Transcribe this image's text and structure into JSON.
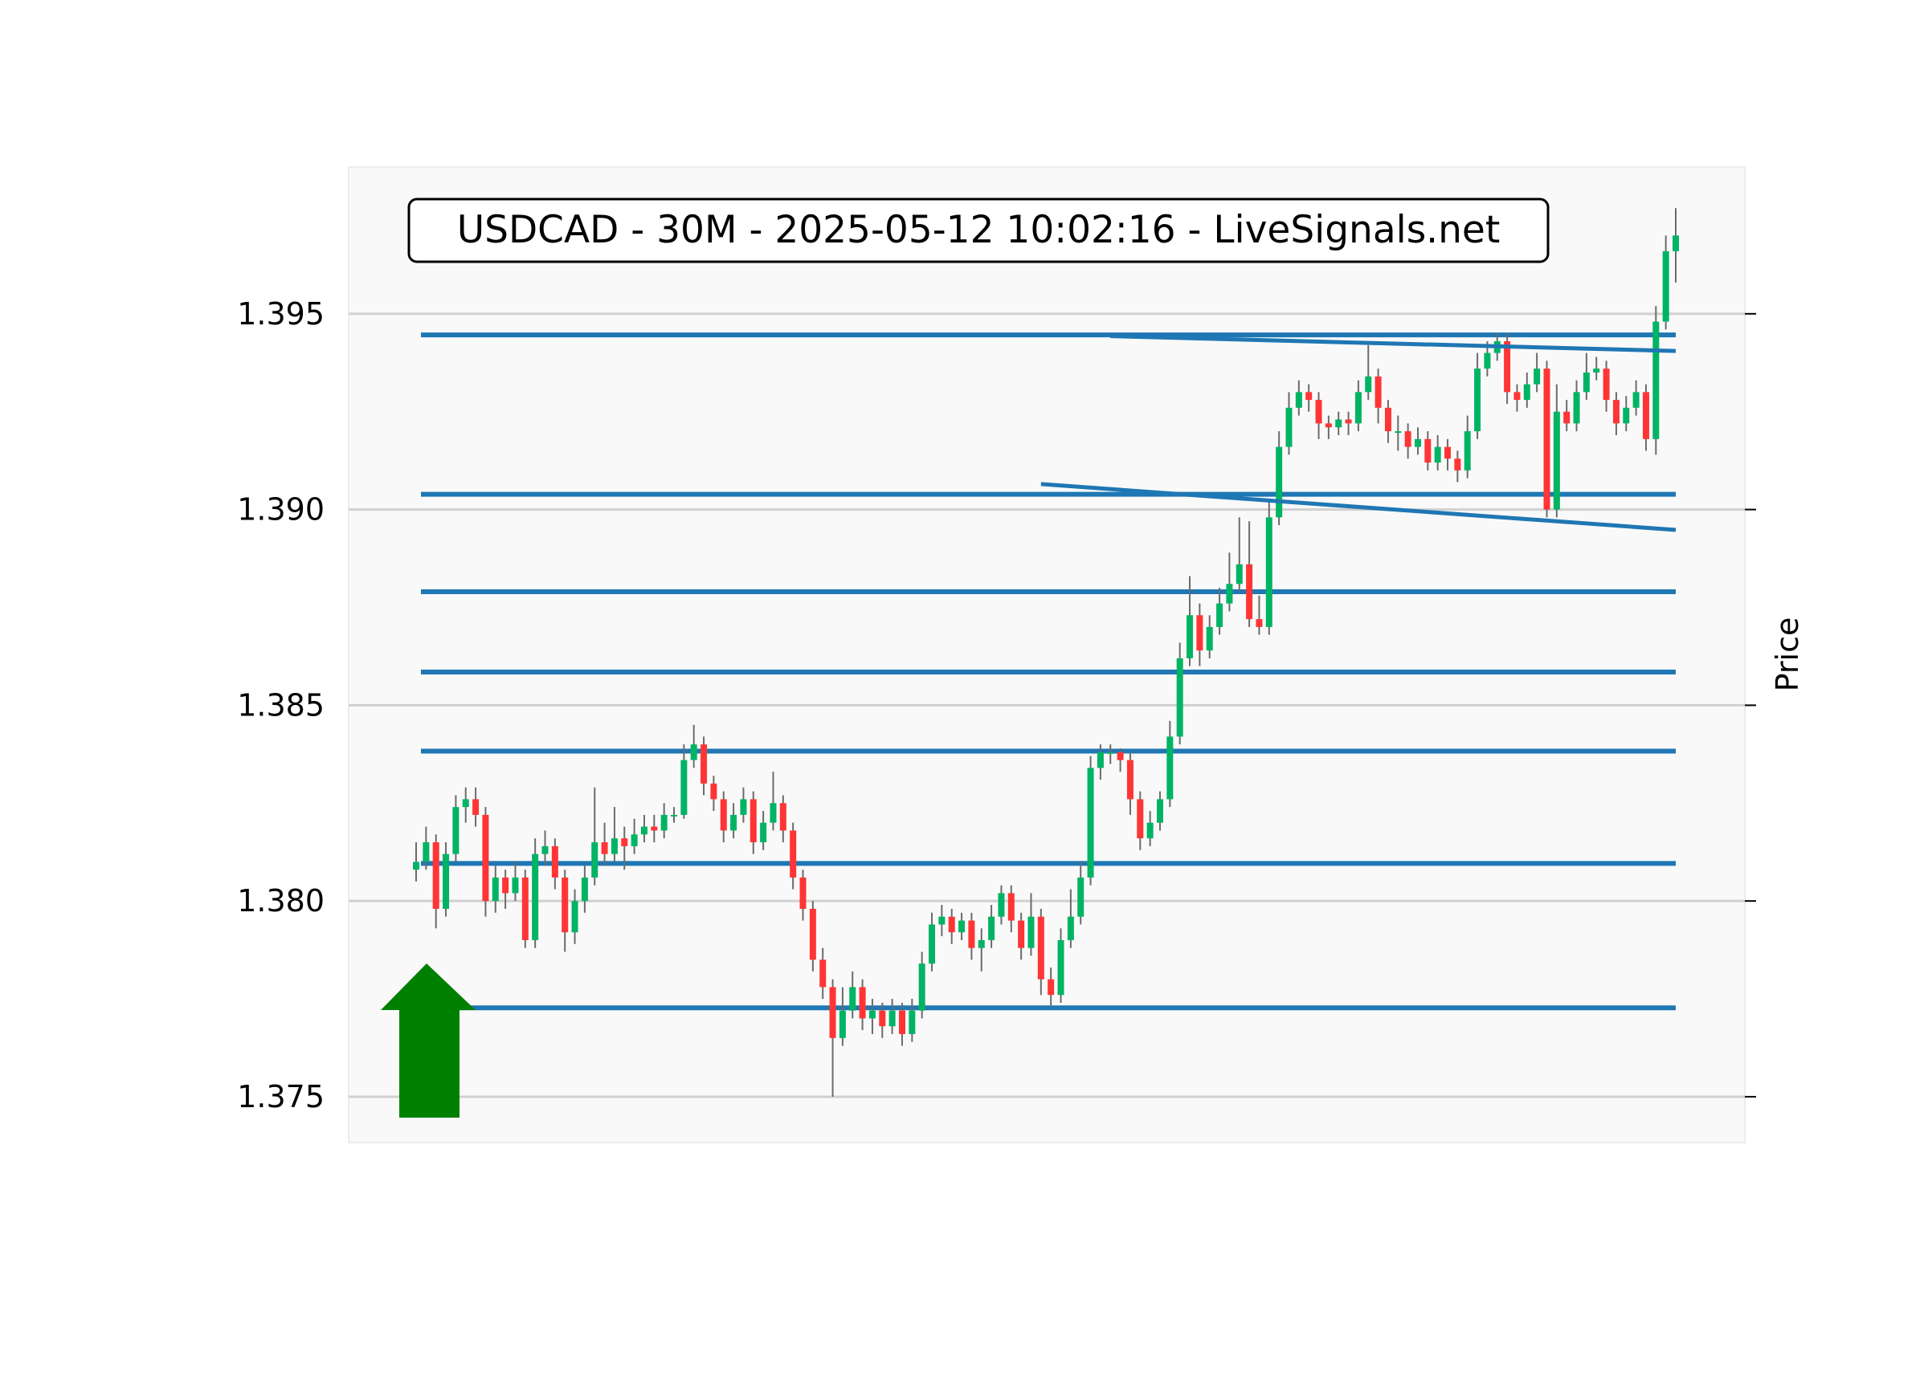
{
  "chart_data": {
    "type": "candlestick",
    "title": "USDCAD - 30M - 2025-05-12 10:02:16 - LiveSignals.net",
    "xlabel": "",
    "ylabel": "Price",
    "ylim": [
      1.37383,
      1.39875
    ],
    "yticks": [
      1.375,
      1.38,
      1.385,
      1.39,
      1.395
    ],
    "ytick_labels": [
      "1.375",
      "1.380",
      "1.385",
      "1.390",
      "1.395"
    ],
    "grid": "horizontal",
    "colors": {
      "up": "#00b464",
      "down": "#ff3535",
      "wick": "#6b6b6b",
      "levels": "#1f77b4",
      "signal": "#008000",
      "background": "#f9f9f9",
      "grid": "#d0d0d0"
    },
    "signal": {
      "direction": "buy",
      "icon": "up-arrow"
    },
    "horizontal_levels": [
      1.39446,
      1.39039,
      1.3879,
      1.38585,
      1.38383,
      1.38096,
      1.37727
    ],
    "trend_lines": [
      {
        "start_index": 70,
        "start_price": 1.39443,
        "end_index": 127,
        "end_price": 1.39405
      },
      {
        "start_index": 63,
        "start_price": 1.39065,
        "end_index": 127,
        "end_price": 1.38948
      }
    ],
    "ohlc": [
      [
        1.3808,
        1.3815,
        1.3805,
        1.381
      ],
      [
        1.381,
        1.3819,
        1.3808,
        1.3815
      ],
      [
        1.3815,
        1.3817,
        1.3793,
        1.3798
      ],
      [
        1.3798,
        1.3815,
        1.3796,
        1.3812
      ],
      [
        1.3812,
        1.3827,
        1.381,
        1.3824
      ],
      [
        1.3824,
        1.3829,
        1.382,
        1.3826
      ],
      [
        1.3826,
        1.3829,
        1.3819,
        1.3822
      ],
      [
        1.3822,
        1.3824,
        1.3796,
        1.38
      ],
      [
        1.38,
        1.3809,
        1.3797,
        1.3806
      ],
      [
        1.3806,
        1.3808,
        1.3798,
        1.3802
      ],
      [
        1.3802,
        1.381,
        1.38,
        1.3806
      ],
      [
        1.3806,
        1.3808,
        1.3788,
        1.379
      ],
      [
        1.379,
        1.3816,
        1.3788,
        1.3812
      ],
      [
        1.3812,
        1.3818,
        1.3809,
        1.3814
      ],
      [
        1.3814,
        1.3816,
        1.3803,
        1.3806
      ],
      [
        1.3806,
        1.3808,
        1.3787,
        1.3792
      ],
      [
        1.3792,
        1.3803,
        1.3789,
        1.38
      ],
      [
        1.38,
        1.3809,
        1.3797,
        1.3806
      ],
      [
        1.3806,
        1.3829,
        1.3804,
        1.3815
      ],
      [
        1.3815,
        1.382,
        1.3809,
        1.3812
      ],
      [
        1.3812,
        1.3824,
        1.381,
        1.3816
      ],
      [
        1.3816,
        1.3819,
        1.3808,
        1.3814
      ],
      [
        1.3814,
        1.3821,
        1.3812,
        1.3817
      ],
      [
        1.3817,
        1.3822,
        1.3815,
        1.3819
      ],
      [
        1.3819,
        1.3822,
        1.3815,
        1.3818
      ],
      [
        1.3818,
        1.3825,
        1.3816,
        1.3822
      ],
      [
        1.3822,
        1.3824,
        1.382,
        1.3822
      ],
      [
        1.3822,
        1.384,
        1.3821,
        1.3836
      ],
      [
        1.3836,
        1.3845,
        1.3834,
        1.384
      ],
      [
        1.384,
        1.3842,
        1.3827,
        1.383
      ],
      [
        1.383,
        1.3832,
        1.3823,
        1.3826
      ],
      [
        1.3826,
        1.3828,
        1.3815,
        1.3818
      ],
      [
        1.3818,
        1.3825,
        1.3816,
        1.3822
      ],
      [
        1.3822,
        1.3829,
        1.382,
        1.3826
      ],
      [
        1.3826,
        1.3828,
        1.3812,
        1.3815
      ],
      [
        1.3815,
        1.3823,
        1.3813,
        1.382
      ],
      [
        1.382,
        1.3833,
        1.3818,
        1.3825
      ],
      [
        1.3825,
        1.3827,
        1.3815,
        1.3818
      ],
      [
        1.3818,
        1.382,
        1.3803,
        1.3806
      ],
      [
        1.3806,
        1.3808,
        1.3795,
        1.3798
      ],
      [
        1.3798,
        1.38,
        1.3782,
        1.3785
      ],
      [
        1.3785,
        1.3788,
        1.3775,
        1.3778
      ],
      [
        1.3778,
        1.378,
        1.375,
        1.3765
      ],
      [
        1.3765,
        1.3778,
        1.3763,
        1.3772
      ],
      [
        1.3772,
        1.3782,
        1.377,
        1.3778
      ],
      [
        1.3778,
        1.378,
        1.3767,
        1.377
      ],
      [
        1.377,
        1.3775,
        1.3766,
        1.3772
      ],
      [
        1.3772,
        1.3774,
        1.3765,
        1.3768
      ],
      [
        1.3768,
        1.3775,
        1.3766,
        1.3772
      ],
      [
        1.3772,
        1.3774,
        1.3763,
        1.3766
      ],
      [
        1.3766,
        1.3775,
        1.3764,
        1.3772
      ],
      [
        1.3772,
        1.3787,
        1.377,
        1.3784
      ],
      [
        1.3784,
        1.3797,
        1.3782,
        1.3794
      ],
      [
        1.3794,
        1.3799,
        1.3791,
        1.3796
      ],
      [
        1.3796,
        1.3798,
        1.3789,
        1.3792
      ],
      [
        1.3792,
        1.3797,
        1.379,
        1.3795
      ],
      [
        1.3795,
        1.3797,
        1.3785,
        1.3788
      ],
      [
        1.3788,
        1.3793,
        1.3782,
        1.379
      ],
      [
        1.379,
        1.3799,
        1.3788,
        1.3796
      ],
      [
        1.3796,
        1.3804,
        1.3794,
        1.3802
      ],
      [
        1.3802,
        1.3804,
        1.3792,
        1.3795
      ],
      [
        1.3795,
        1.3797,
        1.3785,
        1.3788
      ],
      [
        1.3788,
        1.3802,
        1.3786,
        1.3796
      ],
      [
        1.3796,
        1.3798,
        1.3776,
        1.378
      ],
      [
        1.378,
        1.3783,
        1.3773,
        1.3776
      ],
      [
        1.3776,
        1.3793,
        1.3774,
        1.379
      ],
      [
        1.379,
        1.3803,
        1.3788,
        1.3796
      ],
      [
        1.3796,
        1.381,
        1.3794,
        1.3806
      ],
      [
        1.3806,
        1.3837,
        1.3804,
        1.3834
      ],
      [
        1.3834,
        1.384,
        1.3831,
        1.3838
      ],
      [
        1.3838,
        1.384,
        1.3835,
        1.3838
      ],
      [
        1.3838,
        1.3839,
        1.3833,
        1.3836
      ],
      [
        1.3836,
        1.3838,
        1.3822,
        1.3826
      ],
      [
        1.3826,
        1.3828,
        1.3813,
        1.3816
      ],
      [
        1.3816,
        1.3823,
        1.3814,
        1.382
      ],
      [
        1.382,
        1.3828,
        1.3818,
        1.3826
      ],
      [
        1.3826,
        1.3846,
        1.3824,
        1.3842
      ],
      [
        1.3842,
        1.3866,
        1.384,
        1.3862
      ],
      [
        1.3862,
        1.3883,
        1.386,
        1.3873
      ],
      [
        1.3873,
        1.3876,
        1.386,
        1.3864
      ],
      [
        1.3864,
        1.3873,
        1.3862,
        1.387
      ],
      [
        1.387,
        1.388,
        1.3868,
        1.3876
      ],
      [
        1.3876,
        1.3889,
        1.3874,
        1.3881
      ],
      [
        1.3881,
        1.3898,
        1.3879,
        1.3886
      ],
      [
        1.3886,
        1.3897,
        1.387,
        1.3872
      ],
      [
        1.3872,
        1.3878,
        1.3868,
        1.387
      ],
      [
        1.387,
        1.3902,
        1.3868,
        1.3898
      ],
      [
        1.3898,
        1.392,
        1.3896,
        1.3916
      ],
      [
        1.3916,
        1.393,
        1.3914,
        1.3926
      ],
      [
        1.3926,
        1.3933,
        1.3924,
        1.393
      ],
      [
        1.393,
        1.3932,
        1.3925,
        1.3928
      ],
      [
        1.3928,
        1.393,
        1.3918,
        1.3922
      ],
      [
        1.3922,
        1.3924,
        1.3918,
        1.3921
      ],
      [
        1.3921,
        1.3925,
        1.3919,
        1.3923
      ],
      [
        1.3923,
        1.3925,
        1.3919,
        1.3922
      ],
      [
        1.3922,
        1.3933,
        1.392,
        1.393
      ],
      [
        1.393,
        1.3942,
        1.3928,
        1.3934
      ],
      [
        1.3934,
        1.3936,
        1.3922,
        1.3926
      ],
      [
        1.3926,
        1.3928,
        1.3917,
        1.392
      ],
      [
        1.392,
        1.3924,
        1.3915,
        1.392
      ],
      [
        1.392,
        1.3922,
        1.3913,
        1.3916
      ],
      [
        1.3916,
        1.3921,
        1.3914,
        1.3918
      ],
      [
        1.3918,
        1.392,
        1.391,
        1.3912
      ],
      [
        1.3912,
        1.3919,
        1.391,
        1.3916
      ],
      [
        1.3916,
        1.3918,
        1.391,
        1.3913
      ],
      [
        1.3913,
        1.3915,
        1.3907,
        1.391
      ],
      [
        1.391,
        1.3924,
        1.3908,
        1.392
      ],
      [
        1.392,
        1.394,
        1.3918,
        1.3936
      ],
      [
        1.3936,
        1.3943,
        1.3934,
        1.394
      ],
      [
        1.394,
        1.3945,
        1.3938,
        1.3943
      ],
      [
        1.3943,
        1.3945,
        1.3927,
        1.393
      ],
      [
        1.393,
        1.3932,
        1.3925,
        1.3928
      ],
      [
        1.3928,
        1.3935,
        1.3926,
        1.3932
      ],
      [
        1.3932,
        1.394,
        1.393,
        1.3936
      ],
      [
        1.3936,
        1.3938,
        1.3898,
        1.39
      ],
      [
        1.39,
        1.3932,
        1.3898,
        1.3925
      ],
      [
        1.3925,
        1.3928,
        1.392,
        1.3922
      ],
      [
        1.3922,
        1.3933,
        1.392,
        1.393
      ],
      [
        1.393,
        1.394,
        1.3928,
        1.3935
      ],
      [
        1.3935,
        1.3939,
        1.3933,
        1.3936
      ],
      [
        1.3936,
        1.3938,
        1.3925,
        1.3928
      ],
      [
        1.3928,
        1.393,
        1.3919,
        1.3922
      ],
      [
        1.3922,
        1.3929,
        1.392,
        1.3926
      ],
      [
        1.3926,
        1.3933,
        1.3924,
        1.393
      ],
      [
        1.393,
        1.3932,
        1.3915,
        1.3918
      ],
      [
        1.3918,
        1.3952,
        1.3914,
        1.3948
      ],
      [
        1.3948,
        1.397,
        1.3946,
        1.3966
      ],
      [
        1.3966,
        1.3977,
        1.3958,
        1.397
      ]
    ]
  }
}
